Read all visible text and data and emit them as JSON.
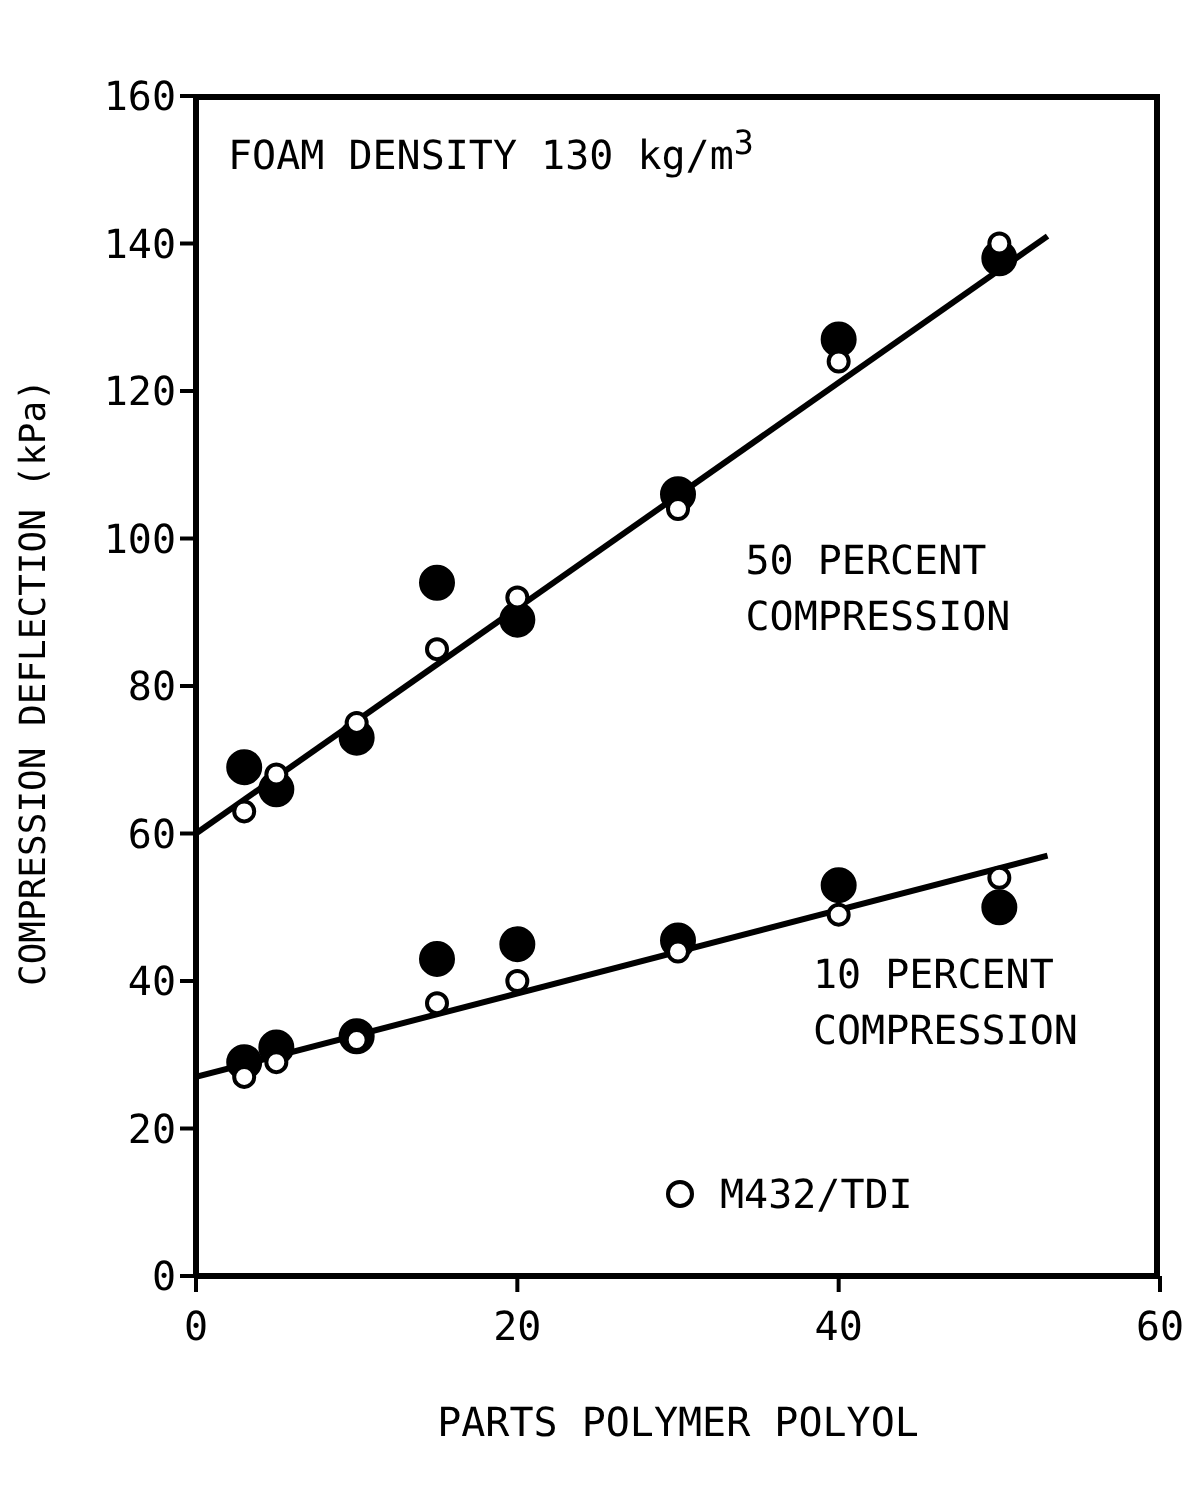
{
  "chart_data": {
    "type": "scatter",
    "xlabel": "PARTS POLYMER POLYOL",
    "ylabel": "COMPRESSION DEFLECTION (kPa)",
    "xlim": [
      0,
      60
    ],
    "xticks": [
      0,
      20,
      40,
      60
    ],
    "ylim": [
      0,
      160
    ],
    "yticks": [
      0,
      20,
      40,
      60,
      80,
      100,
      120,
      140,
      160
    ],
    "grid": false,
    "legend": "bottom right",
    "marker": "circle",
    "annotations": [
      "FOAM DENSITY 130 kg/m$^{3}$",
      "50 PERCENT\nCOMPRESSION",
      "10 PERCENT\nCOMPRESSION"
    ],
    "series": [
      {
        "color": "#000000",
        "x": [
          3,
          5,
          10,
          15,
          20,
          30,
          40,
          50,
          3,
          5,
          10,
          15,
          20,
          30,
          40,
          50
        ],
        "values": [
          69,
          66,
          73,
          94,
          89,
          106,
          127,
          138,
          29,
          31,
          32.5,
          43,
          45,
          45.5,
          53,
          50
        ]
      },
      {
        "name": "M432/TDI",
        "color": "#ffffff",
        "x": [
          3,
          5,
          10,
          15,
          20,
          30,
          40,
          50,
          3,
          5,
          10,
          15,
          20,
          30,
          40,
          50
        ],
        "values": [
          63,
          68,
          75,
          85,
          92,
          104,
          124,
          140,
          27,
          29,
          32,
          37,
          40,
          44,
          49,
          54
        ]
      },
      {
        "type": "line",
        "color": "#000000",
        "marker": "none",
        "x": [
          0,
          53
        ],
        "values": [
          60,
          141
        ]
      },
      {
        "type": "line",
        "color": "#000000",
        "marker": "none",
        "x": [
          0,
          53
        ],
        "values": [
          27,
          57
        ]
      }
    ]
  }
}
